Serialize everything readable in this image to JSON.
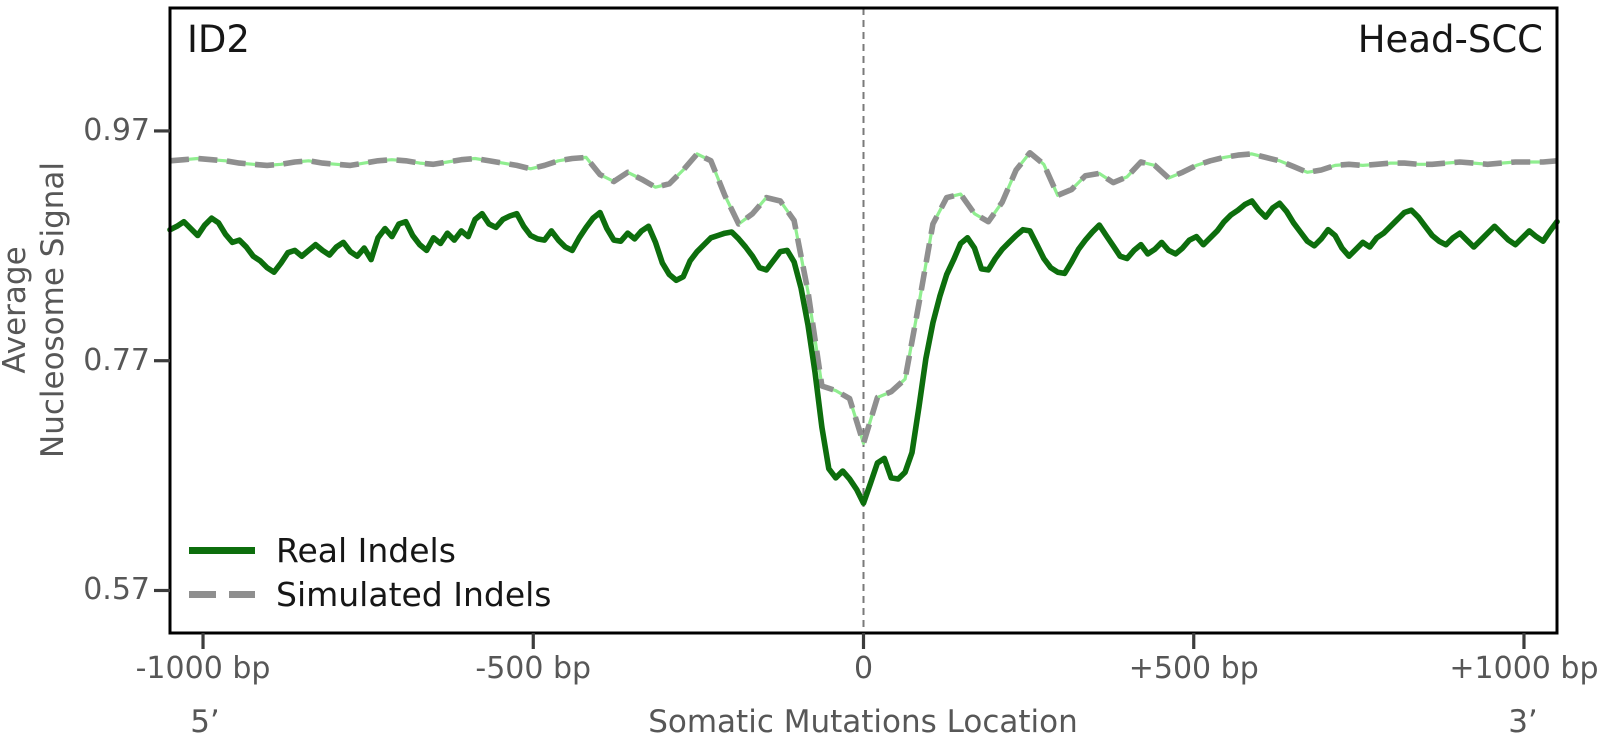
{
  "figure": {
    "panel_label_left": "ID2",
    "panel_label_right": "Head-SCC"
  },
  "colors": {
    "real": "#0d6e0d",
    "simulated": "#8f8f8f",
    "simulated_underlay": "#90ee90",
    "frame": "#000000",
    "tick": "#3c3c3c",
    "axis_text": "#575757",
    "annotation_text": "#161616",
    "vline": "#7a7a7a",
    "background": "#ffffff"
  },
  "chart_data": {
    "type": "line",
    "panel_label_left": "ID2",
    "panel_label_right": "Head-SCC",
    "xlabel": "Somatic Mutations Location",
    "ylabel": "Average\nNucleosome Signal",
    "end_labels": {
      "left": "5’",
      "right": "3’"
    },
    "xlim": [
      -1050,
      1050
    ],
    "ylim": [
      0.533,
      1.077
    ],
    "grid": false,
    "vline_x": 0,
    "legend_position": "lower left",
    "xticks": [
      {
        "v": -1000,
        "label": "-1000 bp"
      },
      {
        "v": -500,
        "label": "-500 bp"
      },
      {
        "v": 0,
        "label": "0"
      },
      {
        "v": 500,
        "label": "+500 bp"
      },
      {
        "v": 1000,
        "label": "+1000 bp"
      }
    ],
    "yticks": [
      {
        "v": 0.97,
        "label": "0.97"
      },
      {
        "v": 0.77,
        "label": "0.77"
      },
      {
        "v": 0.57,
        "label": "0.57"
      }
    ],
    "series": [
      {
        "name": "Real Indels",
        "style": "solid",
        "color_key": "real",
        "width": 5.6,
        "x_start": -1050,
        "x_step": 10.5,
        "values": [
          0.884,
          0.887,
          0.891,
          0.885,
          0.879,
          0.888,
          0.894,
          0.89,
          0.88,
          0.873,
          0.875,
          0.869,
          0.861,
          0.857,
          0.851,
          0.847,
          0.855,
          0.864,
          0.866,
          0.861,
          0.866,
          0.871,
          0.866,
          0.862,
          0.869,
          0.873,
          0.865,
          0.861,
          0.868,
          0.858,
          0.877,
          0.885,
          0.878,
          0.889,
          0.891,
          0.879,
          0.871,
          0.866,
          0.877,
          0.872,
          0.881,
          0.875,
          0.883,
          0.878,
          0.893,
          0.898,
          0.889,
          0.886,
          0.893,
          0.896,
          0.898,
          0.887,
          0.879,
          0.876,
          0.875,
          0.883,
          0.875,
          0.869,
          0.866,
          0.877,
          0.886,
          0.894,
          0.899,
          0.885,
          0.875,
          0.874,
          0.881,
          0.876,
          0.883,
          0.887,
          0.873,
          0.855,
          0.845,
          0.84,
          0.843,
          0.857,
          0.865,
          0.871,
          0.877,
          0.879,
          0.881,
          0.882,
          0.876,
          0.869,
          0.861,
          0.851,
          0.849,
          0.857,
          0.865,
          0.866,
          0.856,
          0.833,
          0.801,
          0.76,
          0.712,
          0.676,
          0.668,
          0.674,
          0.667,
          0.658,
          0.646,
          0.663,
          0.681,
          0.685,
          0.668,
          0.667,
          0.673,
          0.69,
          0.73,
          0.772,
          0.803,
          0.826,
          0.845,
          0.858,
          0.872,
          0.877,
          0.868,
          0.85,
          0.849,
          0.859,
          0.867,
          0.873,
          0.879,
          0.884,
          0.883,
          0.871,
          0.859,
          0.851,
          0.847,
          0.846,
          0.856,
          0.867,
          0.875,
          0.882,
          0.888,
          0.879,
          0.87,
          0.861,
          0.859,
          0.866,
          0.871,
          0.863,
          0.867,
          0.873,
          0.866,
          0.863,
          0.868,
          0.875,
          0.878,
          0.871,
          0.877,
          0.883,
          0.891,
          0.897,
          0.901,
          0.906,
          0.909,
          0.901,
          0.895,
          0.903,
          0.907,
          0.9,
          0.89,
          0.882,
          0.874,
          0.87,
          0.876,
          0.884,
          0.879,
          0.868,
          0.861,
          0.867,
          0.873,
          0.869,
          0.877,
          0.881,
          0.887,
          0.893,
          0.899,
          0.901,
          0.895,
          0.887,
          0.879,
          0.874,
          0.871,
          0.877,
          0.881,
          0.875,
          0.869,
          0.875,
          0.881,
          0.887,
          0.881,
          0.875,
          0.871,
          0.877,
          0.883,
          0.878,
          0.874,
          0.883,
          0.891
        ]
      },
      {
        "name": "Simulated Indels",
        "style": "dashed",
        "color_key": "simulated",
        "underlay_color_key": "simulated_underlay",
        "width": 5.6,
        "x_start": -1050,
        "x_step": 21,
        "values": [
          0.944,
          0.945,
          0.946,
          0.945,
          0.944,
          0.942,
          0.941,
          0.94,
          0.941,
          0.943,
          0.944,
          0.942,
          0.941,
          0.94,
          0.942,
          0.944,
          0.945,
          0.944,
          0.942,
          0.941,
          0.943,
          0.945,
          0.946,
          0.944,
          0.942,
          0.94,
          0.937,
          0.94,
          0.944,
          0.946,
          0.947,
          0.932,
          0.926,
          0.934,
          0.928,
          0.921,
          0.924,
          0.936,
          0.95,
          0.944,
          0.914,
          0.889,
          0.898,
          0.912,
          0.909,
          0.892,
          0.83,
          0.748,
          0.744,
          0.737,
          0.698,
          0.738,
          0.743,
          0.754,
          0.82,
          0.889,
          0.912,
          0.915,
          0.898,
          0.891,
          0.908,
          0.936,
          0.951,
          0.941,
          0.914,
          0.919,
          0.931,
          0.933,
          0.925,
          0.93,
          0.943,
          0.94,
          0.929,
          0.934,
          0.94,
          0.944,
          0.947,
          0.949,
          0.95,
          0.947,
          0.944,
          0.939,
          0.934,
          0.936,
          0.94,
          0.941,
          0.94,
          0.941,
          0.942,
          0.942,
          0.941,
          0.941,
          0.942,
          0.943,
          0.942,
          0.941,
          0.942,
          0.943,
          0.943,
          0.943,
          0.944
        ]
      }
    ]
  }
}
